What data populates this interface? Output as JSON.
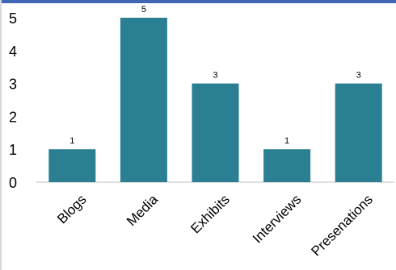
{
  "chart_data": {
    "type": "bar",
    "categories": [
      "Blogs",
      "Media",
      "Exhibits",
      "Interviews",
      "Presenations"
    ],
    "values": [
      1,
      5,
      3,
      1,
      3
    ],
    "data_labels": [
      "1",
      "5",
      "3",
      "1",
      "3"
    ],
    "ylim": [
      0,
      5
    ],
    "yticks": [
      "0",
      "1",
      "2",
      "3",
      "4",
      "5"
    ],
    "grid": false,
    "legend": "none",
    "bar_color": "#2a7f93",
    "title": "",
    "xlabel": "",
    "ylabel": ""
  },
  "colors": {
    "top_border": "#3f66b5"
  }
}
